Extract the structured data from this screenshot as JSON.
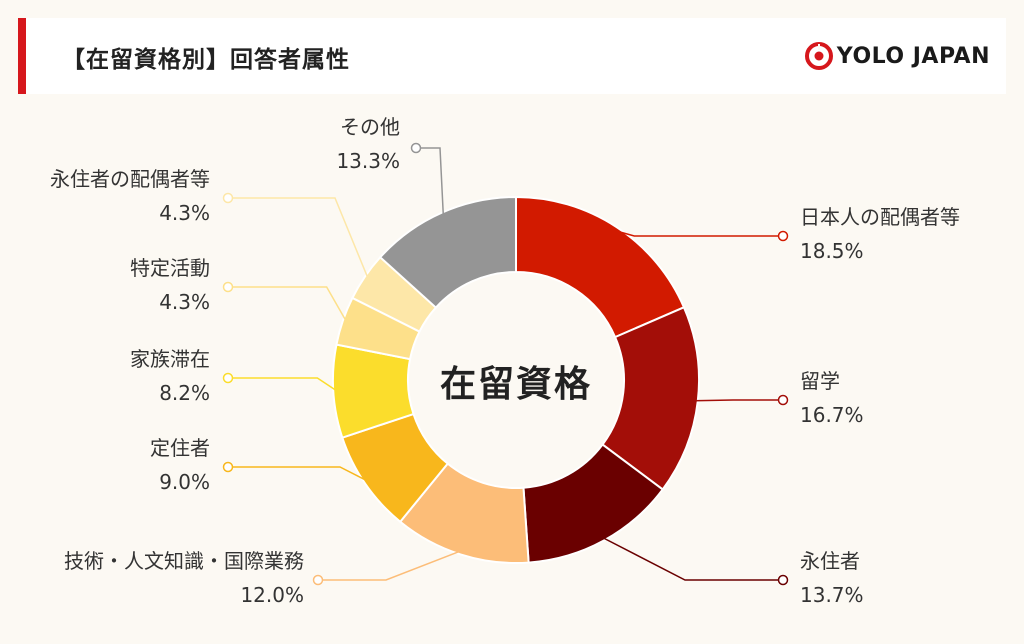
{
  "header": {
    "title": "【在留資格別】回答者属性",
    "brand": "YOLO JAPAN",
    "accent_color": "#d6171c"
  },
  "chart_data": {
    "type": "pie",
    "variant": "donut",
    "center_label": "在留資格",
    "unit": "%",
    "slices": [
      {
        "label": "日本人の配偶者等",
        "value": 18.5,
        "display": "18.5%",
        "color": "#d21a00"
      },
      {
        "label": "留学",
        "value": 16.7,
        "display": "16.7%",
        "color": "#a30e08"
      },
      {
        "label": "永住者",
        "value": 13.7,
        "display": "13.7%",
        "color": "#6a0000"
      },
      {
        "label": "技術・人文知識・国際業務",
        "value": 12.0,
        "display": "12.0%",
        "color": "#fcbd78"
      },
      {
        "label": "定住者",
        "value": 9.0,
        "display": "9.0%",
        "color": "#f8b71c"
      },
      {
        "label": "家族滞在",
        "value": 8.2,
        "display": "8.2%",
        "color": "#fbdd2c"
      },
      {
        "label": "特定活動",
        "value": 4.3,
        "display": "4.3%",
        "color": "#fde08a"
      },
      {
        "label": "永住者の配偶者等",
        "value": 4.3,
        "display": "4.3%",
        "color": "#fde7a8"
      },
      {
        "label": "その他",
        "value": 13.3,
        "display": "13.3%",
        "color": "#959595"
      }
    ]
  }
}
